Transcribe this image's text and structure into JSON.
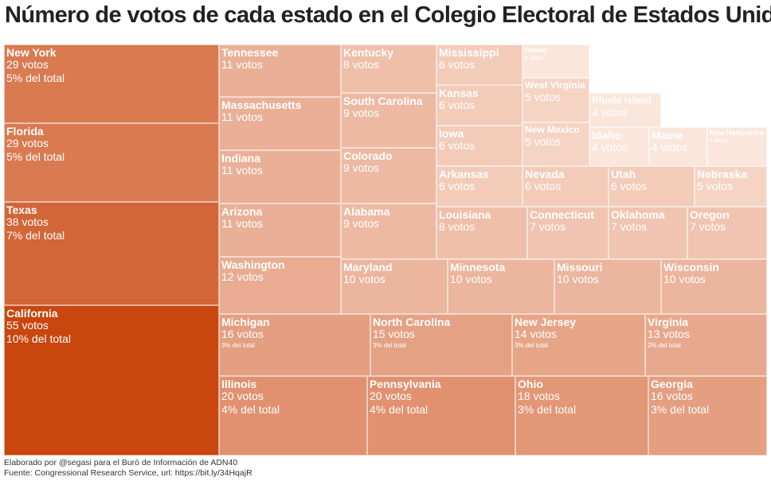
{
  "title": "Número de votos de cada estado en el Colegio Electoral de Estados Unidos",
  "footer": {
    "credit": "Elaborado por @segasi para el Buró de Información de ADN40",
    "source": "Fuente: Congressional Research Service, url: https://bit.ly/34HqajR"
  },
  "chart_data": {
    "type": "treemap",
    "title": "Número de votos de cada estado en el Colegio Electoral de Estados Unidos",
    "value_unit": "votos",
    "color_scale": {
      "low": "#fbe6dc",
      "high": "#c9460f"
    },
    "states": [
      {
        "name": "California",
        "value": 55,
        "label_votes": "55 votos",
        "label_pct": "10% del total"
      },
      {
        "name": "Texas",
        "value": 38,
        "label_votes": "38 votos",
        "label_pct": "7% del total"
      },
      {
        "name": "New York",
        "value": 29,
        "label_votes": "29 votos",
        "label_pct": "5% del total"
      },
      {
        "name": "Florida",
        "value": 29,
        "label_votes": "29 votos",
        "label_pct": "5% del total"
      },
      {
        "name": "Illinois",
        "value": 20,
        "label_votes": "20 votos",
        "label_pct": "4% del total"
      },
      {
        "name": "Pennsylvania",
        "value": 20,
        "label_votes": "20 votos",
        "label_pct": "4% del total"
      },
      {
        "name": "Ohio",
        "value": 18,
        "label_votes": "18 votos",
        "label_pct": "3% del total"
      },
      {
        "name": "Georgia",
        "value": 16,
        "label_votes": "16 votos",
        "label_pct": "3% del total"
      },
      {
        "name": "Michigan",
        "value": 16,
        "label_votes": "16 votos",
        "label_pct": "3% del total"
      },
      {
        "name": "North Carolina",
        "value": 15,
        "label_votes": "15 votos",
        "label_pct": "3% del total"
      },
      {
        "name": "New Jersey",
        "value": 14,
        "label_votes": "14 votos",
        "label_pct": "3% del total"
      },
      {
        "name": "Virginia",
        "value": 13,
        "label_votes": "13 votos",
        "label_pct": "2% del total"
      },
      {
        "name": "Washington",
        "value": 12,
        "label_votes": "12 votos",
        "label_pct": ""
      },
      {
        "name": "Tennessee",
        "value": 11,
        "label_votes": "11 votos",
        "label_pct": ""
      },
      {
        "name": "Massachusetts",
        "value": 11,
        "label_votes": "11 votos",
        "label_pct": ""
      },
      {
        "name": "Indiana",
        "value": 11,
        "label_votes": "11 votos",
        "label_pct": ""
      },
      {
        "name": "Arizona",
        "value": 11,
        "label_votes": "11 votos",
        "label_pct": ""
      },
      {
        "name": "Maryland",
        "value": 10,
        "label_votes": "10 votos",
        "label_pct": ""
      },
      {
        "name": "Minnesota",
        "value": 10,
        "label_votes": "10 votos",
        "label_pct": ""
      },
      {
        "name": "Missouri",
        "value": 10,
        "label_votes": "10 votos",
        "label_pct": ""
      },
      {
        "name": "Wisconsin",
        "value": 10,
        "label_votes": "10 votos",
        "label_pct": ""
      },
      {
        "name": "South Carolina",
        "value": 9,
        "label_votes": "9 votos",
        "label_pct": ""
      },
      {
        "name": "Colorado",
        "value": 9,
        "label_votes": "9 votos",
        "label_pct": ""
      },
      {
        "name": "Alabama",
        "value": 9,
        "label_votes": "9 votos",
        "label_pct": ""
      },
      {
        "name": "Kentucky",
        "value": 8,
        "label_votes": "8 votos",
        "label_pct": ""
      },
      {
        "name": "Louisiana",
        "value": 8,
        "label_votes": "8 votos",
        "label_pct": ""
      },
      {
        "name": "Connecticut",
        "value": 7,
        "label_votes": "7 votos",
        "label_pct": ""
      },
      {
        "name": "Oklahoma",
        "value": 7,
        "label_votes": "7 votos",
        "label_pct": ""
      },
      {
        "name": "Oregon",
        "value": 7,
        "label_votes": "7 votos",
        "label_pct": ""
      },
      {
        "name": "Mississippi",
        "value": 6,
        "label_votes": "6 votos",
        "label_pct": ""
      },
      {
        "name": "Kansas",
        "value": 6,
        "label_votes": "6 votos",
        "label_pct": ""
      },
      {
        "name": "Iowa",
        "value": 6,
        "label_votes": "6 votos",
        "label_pct": ""
      },
      {
        "name": "Arkansas",
        "value": 6,
        "label_votes": "6 votos",
        "label_pct": ""
      },
      {
        "name": "Nevada",
        "value": 6,
        "label_votes": "6 votos",
        "label_pct": ""
      },
      {
        "name": "Utah",
        "value": 6,
        "label_votes": "6 votos",
        "label_pct": ""
      },
      {
        "name": "West Virginia",
        "value": 5,
        "label_votes": "5 votos",
        "label_pct": ""
      },
      {
        "name": "New Mexico",
        "value": 5,
        "label_votes": "5 votos",
        "label_pct": ""
      },
      {
        "name": "Nebraska",
        "value": 5,
        "label_votes": "5 votos",
        "label_pct": ""
      },
      {
        "name": "Idaho",
        "value": 4,
        "label_votes": "4 votos",
        "label_pct": ""
      },
      {
        "name": "Maine",
        "value": 4,
        "label_votes": "4 votos",
        "label_pct": ""
      },
      {
        "name": "New Hampshire",
        "value": 4,
        "label_votes": "4 votos",
        "label_pct": ""
      },
      {
        "name": "Hawaii",
        "value": 4,
        "label_votes": "4 votos",
        "label_pct": ""
      },
      {
        "name": "Rhode Island",
        "value": 4,
        "label_votes": "4 votos",
        "label_pct": ""
      }
    ]
  }
}
